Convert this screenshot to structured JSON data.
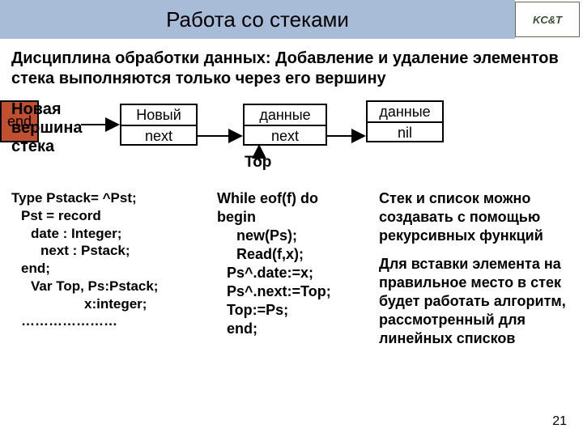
{
  "header": {
    "title": "Работа со стеками",
    "title_bg": "#a8bcd8",
    "logo": "KC&T"
  },
  "subtitle": "Дисциплина обработки данных: Добавление и удаление элементов стека выполняются только через его вершину",
  "diagram": {
    "label_new": "Новая\n вершина\nстека",
    "box_new_top": "Новый",
    "box_new_bot": "next",
    "box_mid_top": "данные",
    "box_mid_bot": "next",
    "box_right_top": "данные",
    "box_right_bot": "nil",
    "box_end": "end",
    "top_label": "Top",
    "box_end_bg": "#c05030"
  },
  "col1": {
    "l1": "Type Pstack= ^Pst;",
    "l2": "Pst = record",
    "l3": "date : Integer;",
    "l4": "next : Pstack;",
    "l5": "end;",
    "l6": "Var Top, Ps:Pstack;",
    "l7": "x:integer;",
    "l8": "…………………"
  },
  "col2": {
    "l1": "While eof(f) do",
    "l2": "begin",
    "l3": "new(Ps);",
    "l4": "Read(f,x);",
    "l5": "Ps^.date:=x;",
    "l6": "Ps^.next:=Top;",
    "l7": "Top:=Ps;",
    "l8": "end;"
  },
  "col3": {
    "p1": "Стек и список можно создавать с помощью рекурсивных функций",
    "p2": "Для вставки элемента на правильное место в стек будет работать алгоритм, рассмотренный для линейных списков"
  },
  "page_num": "21"
}
